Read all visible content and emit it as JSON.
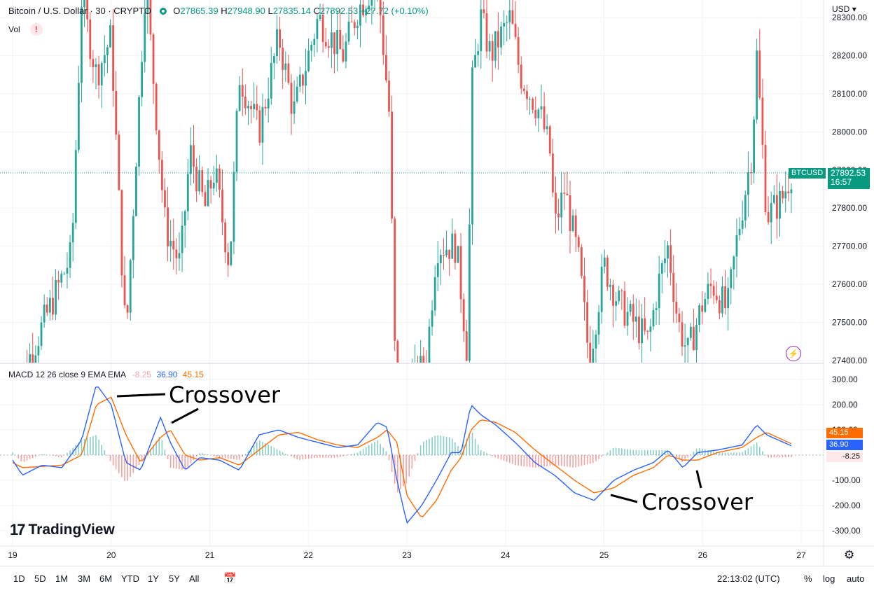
{
  "header": {
    "symbol": "Bitcoin / U.S. Dollar · 30 · CRYPTO",
    "o_label": "O",
    "o_value": "27865.39",
    "h_label": "H",
    "h_value": "27948.90",
    "l_label": "L",
    "l_value": "27835.14",
    "c_label": "C",
    "c_value": "27892.53",
    "change": "+27.72 (+0.10%)",
    "volume_label": "Vol",
    "warning_icon": "warning-icon"
  },
  "currency_menu": "USD",
  "price_badge": {
    "ticker": "BTCUSD",
    "price": "27892.53",
    "countdown": "16:57"
  },
  "macd_legend": {
    "label": "MACD 12 26 close 9 EMA EMA",
    "histogram": "-8.25",
    "macd": "36.90",
    "signal": "45.15"
  },
  "macd_badges": {
    "signal": "45.15",
    "macd": "36.90",
    "histogram": "-8.25"
  },
  "annotations": [
    "Crossover",
    "Crossover"
  ],
  "logo_text": "TradingView",
  "toolbar": {
    "ranges": [
      "1D",
      "5D",
      "1M",
      "3M",
      "6M",
      "YTD",
      "1Y",
      "5Y",
      "All"
    ],
    "time": "22:13:02 (UTC)",
    "percent": "%",
    "log": "log",
    "auto": "auto"
  },
  "colors": {
    "up": "#26a69a",
    "down": "#ef5350",
    "macd": "#2962ff",
    "signal": "#ff6d00",
    "accent": "#089981"
  },
  "chart_data": [
    {
      "type": "candlestick",
      "title": "Bitcoin / U.S. Dollar · 30 · CRYPTO",
      "x_ticks": [
        "19",
        "20",
        "21",
        "22",
        "23",
        "24",
        "25",
        "26",
        "27"
      ],
      "y_ticks": [
        "27400.00",
        "27500.00",
        "27600.00",
        "27700.00",
        "27800.00",
        "27900.00",
        "28000.00",
        "28100.00",
        "28200.00",
        "28300.00"
      ],
      "ylim": [
        27400,
        28300
      ],
      "last_price": 27892.53,
      "path_points": [
        [
          19.0,
          27300
        ],
        [
          19.6,
          27680
        ],
        [
          19.7,
          28350
        ],
        [
          19.85,
          28150
        ],
        [
          20.0,
          28250
        ],
        [
          20.1,
          27700
        ],
        [
          20.15,
          27450
        ],
        [
          20.35,
          28400
        ],
        [
          20.5,
          27900
        ],
        [
          20.55,
          27750
        ],
        [
          20.7,
          27650
        ],
        [
          20.8,
          27950
        ],
        [
          20.95,
          27800
        ],
        [
          21.05,
          27900
        ],
        [
          21.2,
          27650
        ],
        [
          21.3,
          28150
        ],
        [
          21.5,
          28000
        ],
        [
          21.7,
          28250
        ],
        [
          21.85,
          28050
        ],
        [
          22.1,
          28300
        ],
        [
          22.35,
          28200
        ],
        [
          22.5,
          28320
        ],
        [
          22.7,
          28400
        ],
        [
          22.82,
          28050
        ],
        [
          22.88,
          27400
        ],
        [
          22.95,
          27300
        ],
        [
          23.2,
          27400
        ],
        [
          23.3,
          27700
        ],
        [
          23.5,
          27700
        ],
        [
          23.55,
          27580
        ],
        [
          23.62,
          27400
        ],
        [
          23.65,
          28100
        ],
        [
          23.75,
          28300
        ],
        [
          23.85,
          28200
        ],
        [
          24.05,
          28300
        ],
        [
          24.15,
          28150
        ],
        [
          24.35,
          28050
        ],
        [
          24.45,
          27950
        ],
        [
          24.5,
          27750
        ],
        [
          24.6,
          27850
        ],
        [
          24.75,
          27650
        ],
        [
          24.85,
          27400
        ],
        [
          25.0,
          27650
        ],
        [
          25.15,
          27550
        ],
        [
          25.3,
          27500
        ],
        [
          25.45,
          27450
        ],
        [
          25.55,
          27600
        ],
        [
          25.65,
          27700
        ],
        [
          25.75,
          27500
        ],
        [
          25.85,
          27420
        ],
        [
          26.0,
          27550
        ],
        [
          26.1,
          27600
        ],
        [
          26.25,
          27530
        ],
        [
          26.35,
          27720
        ],
        [
          26.5,
          27950
        ],
        [
          26.55,
          28200
        ],
        [
          26.65,
          27780
        ],
        [
          26.8,
          27820
        ],
        [
          26.9,
          27892.53
        ]
      ]
    },
    {
      "type": "line",
      "title": "MACD 12 26 close 9 EMA EMA",
      "y_ticks": [
        "300.00",
        "200.00",
        "100.00",
        "-100.00",
        "-200.00",
        "-300.00"
      ],
      "ylim": [
        -300,
        300
      ],
      "x": [
        19.0,
        19.1,
        19.3,
        19.5,
        19.7,
        19.85,
        20.0,
        20.15,
        20.3,
        20.5,
        20.6,
        20.75,
        20.9,
        21.1,
        21.3,
        21.5,
        21.7,
        21.9,
        22.1,
        22.3,
        22.5,
        22.7,
        22.8,
        22.9,
        23.0,
        23.15,
        23.3,
        23.45,
        23.55,
        23.65,
        23.75,
        23.9,
        24.1,
        24.3,
        24.5,
        24.7,
        24.9,
        25.1,
        25.3,
        25.5,
        25.65,
        25.8,
        25.95,
        26.15,
        26.4,
        26.55,
        26.65,
        26.9
      ],
      "series": [
        {
          "name": "MACD",
          "values": [
            -20,
            -80,
            -40,
            -50,
            60,
            280,
            200,
            -30,
            -60,
            150,
            50,
            -60,
            -10,
            -20,
            -60,
            80,
            100,
            70,
            50,
            30,
            40,
            130,
            110,
            -100,
            -270,
            -200,
            -100,
            10,
            10,
            200,
            160,
            120,
            50,
            -30,
            -80,
            -150,
            -180,
            -100,
            -60,
            -30,
            20,
            -50,
            10,
            20,
            40,
            120,
            80,
            37
          ]
        },
        {
          "name": "Signal",
          "values": [
            -30,
            -50,
            -45,
            -40,
            0,
            200,
            230,
            80,
            -30,
            70,
            100,
            0,
            -20,
            -10,
            -40,
            20,
            80,
            90,
            60,
            40,
            30,
            70,
            100,
            50,
            -160,
            -250,
            -180,
            -60,
            -10,
            100,
            140,
            130,
            90,
            20,
            -40,
            -100,
            -150,
            -130,
            -80,
            -50,
            0,
            -20,
            -20,
            10,
            30,
            70,
            90,
            45
          ]
        },
        {
          "name": "Histogram",
          "values": [
            10,
            -30,
            5,
            -10,
            60,
            80,
            -30,
            -110,
            -30,
            80,
            -50,
            -60,
            10,
            -10,
            -20,
            60,
            20,
            -20,
            -10,
            -10,
            10,
            60,
            10,
            -150,
            -110,
            50,
            80,
            70,
            20,
            100,
            20,
            -10,
            -40,
            -50,
            -40,
            -50,
            -30,
            30,
            20,
            20,
            20,
            -30,
            30,
            10,
            10,
            50,
            -10,
            -8.25
          ]
        }
      ]
    }
  ]
}
